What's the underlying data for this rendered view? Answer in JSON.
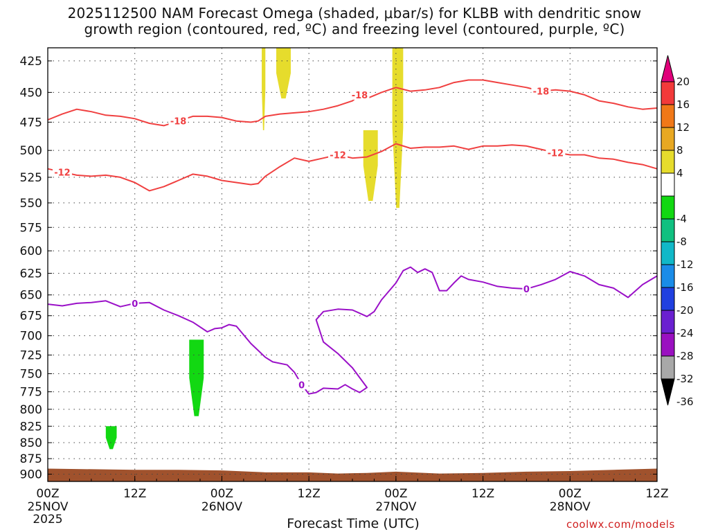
{
  "title": {
    "line1": "2025112500 NAM Forecast Omega (shaded, μbar/s) for KLBB with dendritic snow",
    "line2": "growth region (contoured, red, ºC) and freezing level (contoured, purple, ºC)"
  },
  "xlabel": "Forecast Time (UTC)",
  "credit": "coolwx.com/models",
  "chart_data": {
    "type": "heatmap",
    "title": "2025112500 NAM Forecast Omega (shaded, μbar/s) for KLBB with dendritic snow growth region (contoured, red, ºC) and freezing level (contoured, purple, ºC)",
    "xlabel": "Forecast Time (UTC)",
    "ylabel": "",
    "x_range_hours": [
      0,
      84
    ],
    "y_range_hpa": [
      415,
      912
    ],
    "y_scale": "log (pressure)",
    "y_ticks": [
      425,
      450,
      475,
      500,
      525,
      550,
      575,
      600,
      625,
      650,
      675,
      700,
      725,
      750,
      775,
      800,
      825,
      850,
      875,
      900
    ],
    "x_ticks": [
      {
        "hour": 0,
        "line1": "00Z",
        "line2": "25NOV",
        "line3": "2025"
      },
      {
        "hour": 12,
        "line1": "12Z",
        "line2": "",
        "line3": ""
      },
      {
        "hour": 24,
        "line1": "00Z",
        "line2": "26NOV",
        "line3": ""
      },
      {
        "hour": 36,
        "line1": "12Z",
        "line2": "",
        "line3": ""
      },
      {
        "hour": 48,
        "line1": "00Z",
        "line2": "27NOV",
        "line3": ""
      },
      {
        "hour": 60,
        "line1": "12Z",
        "line2": "",
        "line3": ""
      },
      {
        "hour": 72,
        "line1": "00Z",
        "line2": "28NOV",
        "line3": ""
      },
      {
        "hour": 84,
        "line1": "12Z",
        "line2": "",
        "line3": ""
      }
    ],
    "grid": "dotted",
    "colorbar": {
      "ticks": [
        "20",
        "16",
        "12",
        "8",
        "4",
        "-4",
        "-8",
        "-12",
        "-16",
        "-20",
        "-24",
        "-28",
        "-32",
        "-36"
      ],
      "bins": [
        {
          "range": ">20",
          "color": "#e0007a"
        },
        {
          "range": "16 to 20",
          "color": "#f23a3a"
        },
        {
          "range": "12 to 16",
          "color": "#f07818"
        },
        {
          "range": "8 to 12",
          "color": "#e8a822"
        },
        {
          "range": "4 to 8",
          "color": "#e6dc2c"
        },
        {
          "range": "-4 to 4",
          "color": "#ffffff"
        },
        {
          "range": "-8 to -4",
          "color": "#12d812"
        },
        {
          "range": "-12 to -8",
          "color": "#10c080"
        },
        {
          "range": "-16 to -12",
          "color": "#10b8c8"
        },
        {
          "range": "-20 to -16",
          "color": "#1a8ce8"
        },
        {
          "range": "-24 to -20",
          "color": "#2040e0"
        },
        {
          "range": "-28 to -24",
          "color": "#6a20d0"
        },
        {
          "range": "-32 to -28",
          "color": "#9a10c0"
        },
        {
          "range": "-36 to -32",
          "color": "#a8a8a8"
        },
        {
          "range": "<-36",
          "color": "#000000"
        }
      ]
    },
    "red_isotherm_color": "#f04040",
    "freezing_level_color": "#9a10c8",
    "ground_color": "#a0522d",
    "contours": [
      {
        "label": "-18",
        "points": [
          [
            0,
            473
          ],
          [
            2,
            468
          ],
          [
            4,
            464
          ],
          [
            6,
            466
          ],
          [
            8,
            469
          ],
          [
            10,
            470
          ],
          [
            12,
            472
          ],
          [
            13,
            474
          ],
          [
            14,
            476
          ],
          [
            16,
            478
          ],
          [
            18,
            474
          ],
          [
            20,
            470
          ],
          [
            22,
            470
          ],
          [
            24,
            471
          ],
          [
            26,
            474
          ],
          [
            28,
            475
          ],
          [
            29,
            474
          ],
          [
            30,
            470
          ],
          [
            32,
            468
          ],
          [
            34,
            467
          ],
          [
            36,
            466
          ],
          [
            38,
            464
          ],
          [
            40,
            461
          ],
          [
            42,
            457
          ],
          [
            43,
            452
          ],
          [
            44,
            455
          ],
          [
            46,
            450
          ],
          [
            48,
            446
          ],
          [
            50,
            449
          ],
          [
            52,
            448
          ],
          [
            54,
            446
          ],
          [
            56,
            442
          ],
          [
            58,
            440
          ],
          [
            60,
            440
          ],
          [
            62,
            442
          ],
          [
            64,
            444
          ],
          [
            66,
            446
          ],
          [
            68,
            449
          ],
          [
            70,
            448
          ],
          [
            72,
            449
          ],
          [
            74,
            452
          ],
          [
            76,
            457
          ],
          [
            78,
            459
          ],
          [
            80,
            462
          ],
          [
            82,
            464
          ],
          [
            84,
            463
          ]
        ]
      },
      {
        "label": "-12",
        "points": [
          [
            0,
            517
          ],
          [
            2,
            520
          ],
          [
            4,
            523
          ],
          [
            6,
            524
          ],
          [
            8,
            523
          ],
          [
            10,
            525
          ],
          [
            12,
            530
          ],
          [
            14,
            538
          ],
          [
            16,
            534
          ],
          [
            18,
            528
          ],
          [
            20,
            522
          ],
          [
            22,
            524
          ],
          [
            24,
            528
          ],
          [
            26,
            530
          ],
          [
            28,
            532
          ],
          [
            29,
            531
          ],
          [
            30,
            524
          ],
          [
            32,
            515
          ],
          [
            34,
            507
          ],
          [
            36,
            510
          ],
          [
            38,
            507
          ],
          [
            40,
            504
          ],
          [
            42,
            507
          ],
          [
            44,
            506
          ],
          [
            46,
            501
          ],
          [
            48,
            494
          ],
          [
            50,
            498
          ],
          [
            52,
            497
          ],
          [
            54,
            497
          ],
          [
            56,
            496
          ],
          [
            58,
            499
          ],
          [
            60,
            496
          ],
          [
            62,
            496
          ],
          [
            64,
            495
          ],
          [
            66,
            496
          ],
          [
            68,
            499
          ],
          [
            70,
            502
          ],
          [
            72,
            504
          ],
          [
            74,
            504
          ],
          [
            76,
            507
          ],
          [
            78,
            508
          ],
          [
            80,
            511
          ],
          [
            82,
            513
          ],
          [
            84,
            517
          ]
        ]
      },
      {
        "label": "0",
        "points": [
          [
            0,
            661
          ],
          [
            2,
            663
          ],
          [
            4,
            660
          ],
          [
            6,
            659
          ],
          [
            8,
            657
          ],
          [
            10,
            664
          ],
          [
            11,
            662
          ],
          [
            12,
            660
          ],
          [
            14,
            659
          ],
          [
            16,
            668
          ],
          [
            18,
            675
          ],
          [
            20,
            683
          ],
          [
            22,
            695
          ],
          [
            23,
            691
          ],
          [
            24,
            690
          ],
          [
            25,
            686
          ],
          [
            26,
            688
          ],
          [
            28,
            710
          ],
          [
            30,
            728
          ],
          [
            31,
            734
          ],
          [
            33,
            738
          ],
          [
            34,
            748
          ],
          [
            35,
            765
          ],
          [
            36,
            778
          ],
          [
            37,
            776
          ],
          [
            38,
            770
          ],
          [
            40,
            771
          ],
          [
            41,
            765
          ],
          [
            42,
            771
          ],
          [
            43,
            776
          ],
          [
            44,
            769
          ],
          [
            42,
            742
          ],
          [
            40,
            723
          ],
          [
            38,
            708
          ],
          [
            37,
            680
          ],
          [
            38,
            670
          ],
          [
            40,
            667
          ],
          [
            42,
            668
          ],
          [
            43,
            672
          ],
          [
            44,
            676
          ],
          [
            45,
            670
          ],
          [
            46,
            656
          ],
          [
            48,
            636
          ],
          [
            49,
            622
          ],
          [
            50,
            618
          ],
          [
            51,
            624
          ],
          [
            52,
            620
          ],
          [
            53,
            624
          ],
          [
            54,
            645
          ],
          [
            55,
            645
          ],
          [
            56,
            636
          ],
          [
            57,
            628
          ],
          [
            58,
            632
          ],
          [
            60,
            635
          ],
          [
            62,
            640
          ],
          [
            64,
            642
          ],
          [
            66,
            643
          ],
          [
            68,
            638
          ],
          [
            70,
            632
          ],
          [
            72,
            623
          ],
          [
            74,
            628
          ],
          [
            76,
            638
          ],
          [
            78,
            642
          ],
          [
            80,
            653
          ],
          [
            82,
            638
          ],
          [
            84,
            628
          ]
        ]
      }
    ],
    "omega_regions": [
      {
        "value_range": "4 to 8",
        "color": "#e6dc2c",
        "hours": [
          29.5,
          30.0
        ],
        "pressure_hpa": [
          415,
          482
        ]
      },
      {
        "value_range": "4 to 8",
        "color": "#e6dc2c",
        "hours": [
          31.5,
          33.5
        ],
        "pressure_hpa": [
          415,
          455
        ]
      },
      {
        "value_range": "4 to 8",
        "color": "#e6dc2c",
        "hours": [
          43.5,
          45.5
        ],
        "pressure_hpa": [
          482,
          548
        ]
      },
      {
        "value_range": "4 to 8",
        "color": "#e6dc2c",
        "hours": [
          47.5,
          49.0
        ],
        "pressure_hpa": [
          415,
          555
        ]
      },
      {
        "value_range": "-8 to -4",
        "color": "#12d812",
        "hours": [
          19.5,
          21.5
        ],
        "pressure_hpa": [
          705,
          810
        ]
      },
      {
        "value_range": "-8 to -4",
        "color": "#12d812",
        "hours": [
          8.0,
          9.5
        ],
        "pressure_hpa": [
          825,
          860
        ]
      }
    ],
    "ground_pressure_hpa": [
      [
        0,
        891
      ],
      [
        12,
        893
      ],
      [
        18,
        893
      ],
      [
        24,
        894
      ],
      [
        30,
        897
      ],
      [
        36,
        897
      ],
      [
        40,
        899
      ],
      [
        44,
        898
      ],
      [
        48,
        896
      ],
      [
        54,
        899
      ],
      [
        60,
        898
      ],
      [
        66,
        896
      ],
      [
        72,
        895
      ],
      [
        78,
        893
      ],
      [
        84,
        891
      ]
    ]
  }
}
